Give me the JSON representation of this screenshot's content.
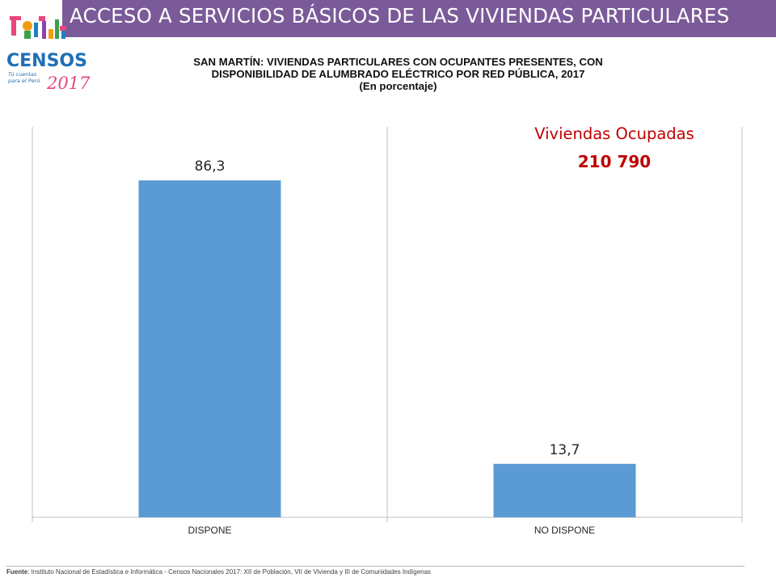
{
  "header": {
    "title": "ACCESO A SERVICIOS BÁSICOS DE LAS VIVIENDAS PARTICULARES",
    "bar_color": "#7b5a99"
  },
  "logo": {
    "text": "CENSOS",
    "tagline_1": "Tú cuentas",
    "tagline_2": "para el Perú",
    "year": "2017"
  },
  "subtitle": {
    "line1": "SAN MARTÍN: VIVIENDAS PARTICULARES CON OCUPANTES PRESENTES, CON",
    "line2": "DISPONIBILIDAD DE ALUMBRADO ELÉCTRICO POR RED PÚBLICA, 2017",
    "line3": "(En porcentaje)"
  },
  "callout": {
    "label": "Viviendas Ocupadas",
    "value": "210 790",
    "color": "#c00000"
  },
  "chart_data": {
    "type": "bar",
    "categories": [
      "DISPONE",
      "NO DISPONE"
    ],
    "values": [
      86.3,
      13.7
    ],
    "value_labels": [
      "86,3",
      "13,7"
    ],
    "ylim": [
      0,
      100
    ],
    "grid": false,
    "bar_color": "#5b9bd5"
  },
  "footer": {
    "label": "Fuente",
    "text": ": Instituto Nacional de Estadística e Informática - Censos Nacionales 2017: XII de Población, VII de Vivienda y III de Comunidades Indígenas"
  }
}
